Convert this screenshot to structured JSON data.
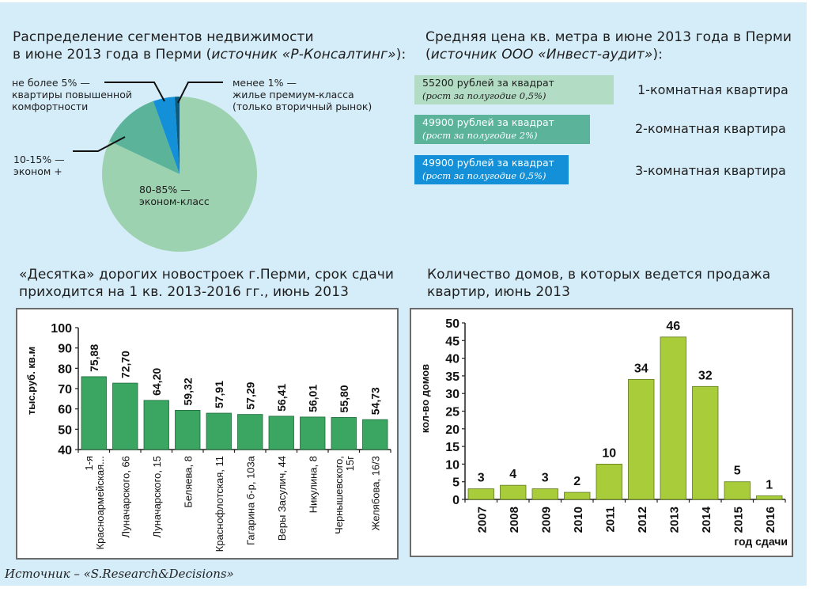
{
  "pie": {
    "title_line1": "Распределение сегментов недвижимости",
    "title_line2_prefix": "в июне 2013 года в Перми (",
    "title_line2_italic": "источник «Р-Консалтинг»",
    "title_line2_suffix": "):",
    "labels": {
      "comfort": [
        "не более 5% —",
        "квартиры повышенной",
        "комфортности"
      ],
      "premium": [
        "менее 1% —",
        "жилье премиум-класса",
        "(только вторичный рынок)"
      ],
      "econom_plus": [
        "10-15% —",
        "эконом +"
      ],
      "econom": [
        "80-85% —",
        "эконом-класс"
      ]
    }
  },
  "prices": {
    "title_line1": "Средняя цена кв. метра в июне 2013 года в Перми",
    "title_line2_prefix": "(",
    "title_line2_italic": "источник ООО «Инвест-аудит»",
    "title_line2_suffix": "):",
    "rows": [
      {
        "price": "55200 рублей за квадрат",
        "growth": "(рост за полугодие 0,5%)",
        "apartment": "1-комнатная квартира",
        "color": "#b3dcc4",
        "text_color": "#1e1e1e"
      },
      {
        "price": "49900 рублей за квадрат",
        "growth": "(рост за полугодие 2%)",
        "apartment": "2-комнатная квартира",
        "color": "#5bb39a",
        "text_color": "#ffffff"
      },
      {
        "price": "49900 рублей за квадрат",
        "growth": "(рост за полугодие 0,5%)",
        "apartment": "3-комнатная квартира",
        "color": "#1390d8",
        "text_color": "#ffffff"
      }
    ]
  },
  "chart_data": [
    {
      "type": "pie",
      "title": "Распределение сегментов недвижимости в июне 2013 года в Перми (источник «Р-Консалтинг»):",
      "slices": [
        {
          "name": "эконом-класс",
          "label": "80-85% —",
          "value": 82,
          "color": "#9dd2b0"
        },
        {
          "name": "эконом +",
          "label": "10-15% —",
          "value": 12.5,
          "color": "#5bb39a"
        },
        {
          "name": "квартиры повышенной комфортности",
          "label": "не более 5% —",
          "value": 4.5,
          "color": "#1390d8"
        },
        {
          "name": "жилье премиум-класса (только вторичный рынок)",
          "label": "менее 1% —",
          "value": 1,
          "color": "#0d5a7d"
        }
      ]
    },
    {
      "type": "bar",
      "title": "«Десятка» дорогих новостроек г.Перми, срок сдачи приходится на 1 кв. 2013-2016 гг., июнь 2013",
      "title_line1": "«Десятка» дорогих новостроек г.Перми, срок сдачи",
      "title_line2": "приходится на 1 кв. 2013-2016 гг., июнь 2013",
      "ylabel": "тыс.руб. кв.м",
      "xlabel": "",
      "ylim": [
        40,
        100
      ],
      "yticks": [
        "40",
        "50",
        "60",
        "70",
        "80",
        "90",
        "100"
      ],
      "bar_color": "#3aa661",
      "categories": [
        [
          "1-я",
          "Красноармейская..."
        ],
        [
          "Луначарского, 66"
        ],
        [
          "Луначарского, 15"
        ],
        [
          "Беляева, 8"
        ],
        [
          "Краснофлотская, 11"
        ],
        [
          "Гагарина б-р, 103а"
        ],
        [
          "Веры Засулич, 44"
        ],
        [
          "Никулина, 8"
        ],
        [
          "Чернышевского,",
          "15г"
        ],
        [
          "Желябова, 16/3"
        ]
      ],
      "values": [
        75.88,
        72.7,
        64.2,
        59.32,
        57.91,
        57.29,
        56.41,
        56.01,
        55.8,
        54.73
      ],
      "value_labels": [
        "75,88",
        "72,70",
        "64,20",
        "59,32",
        "57,91",
        "57,29",
        "56,41",
        "56,01",
        "55,80",
        "54,73"
      ]
    },
    {
      "type": "bar",
      "title": "Количество домов, в которых ведется продажа квартир, июнь 2013",
      "title_line1": "Количество домов, в которых ведется продажа",
      "title_line2": "квартир, июнь 2013",
      "ylabel": "кол-во домов",
      "xlabel": "год сдачи",
      "ylim": [
        0,
        50
      ],
      "yticks": [
        "0",
        "5",
        "10",
        "15",
        "20",
        "25",
        "30",
        "35",
        "40",
        "45",
        "50"
      ],
      "bar_color": "#a8cc3a",
      "categories": [
        "2007",
        "2008",
        "2009",
        "2010",
        "2011",
        "2012",
        "2013",
        "2014",
        "2015",
        "2016"
      ],
      "values": [
        3,
        4,
        3,
        2,
        10,
        34,
        46,
        32,
        5,
        1
      ],
      "value_labels": [
        "3",
        "4",
        "3",
        "2",
        "10",
        "34",
        "46",
        "32",
        "5",
        "1"
      ]
    }
  ],
  "footer": {
    "source": "Источник –  «S.Research&Decisions»"
  }
}
